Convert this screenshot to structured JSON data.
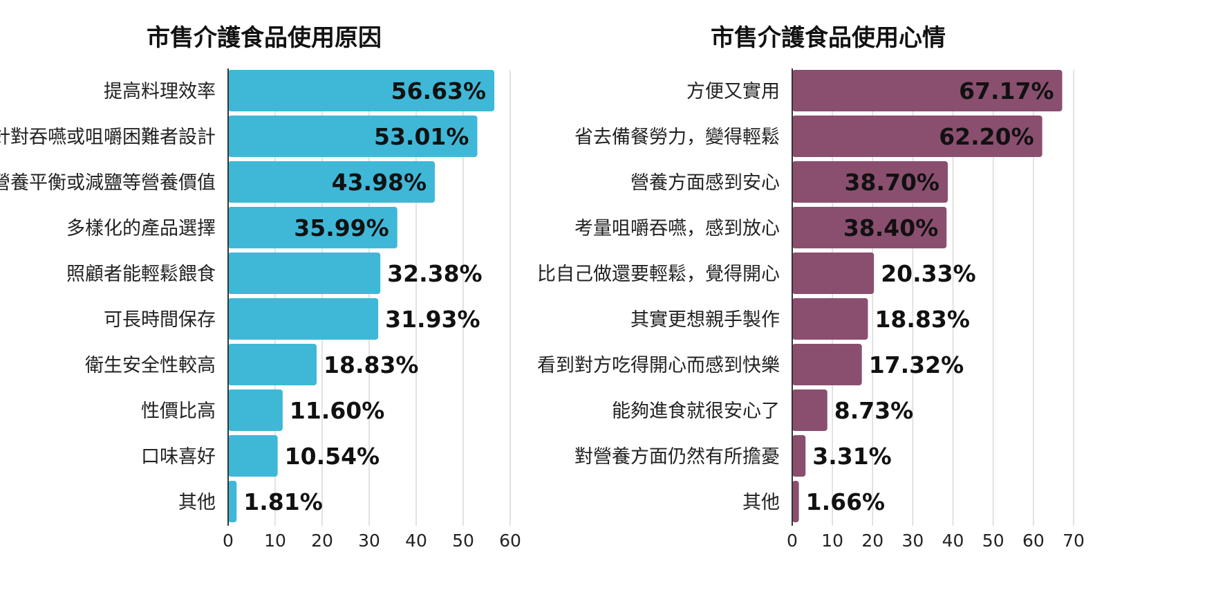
{
  "chart_data": [
    {
      "type": "bar",
      "title": "市售介護食品使用原因",
      "color": "#3fb8d8",
      "categories": [
        "提高料理效率",
        "針對吞嚥或咀嚼困難者設計",
        "營養平衡或減鹽等營養價值",
        "多樣化的產品選擇",
        "照顧者能輕鬆餵食",
        "可長時間保存",
        "衛生安全性較高",
        "性價比高",
        "口味喜好",
        "其他"
      ],
      "values": [
        56.63,
        53.01,
        43.98,
        35.99,
        32.38,
        31.93,
        18.83,
        11.6,
        10.54,
        1.81
      ],
      "value_labels": [
        "56.63%",
        "53.01%",
        "43.98%",
        "35.99%",
        "32.38%",
        "31.93%",
        "18.83%",
        "11.60%",
        "10.54%",
        "1.81%"
      ],
      "xlim": [
        0,
        60
      ],
      "ticks": [
        "0",
        "10",
        "20",
        "30",
        "40",
        "50",
        "60"
      ],
      "grid": true
    },
    {
      "type": "bar",
      "title": "市售介護食品使用心情",
      "color": "#8a4f6f",
      "categories": [
        "方便又實用",
        "省去備餐勞力，變得輕鬆",
        "營養方面感到安心",
        "考量咀嚼吞嚥，感到放心",
        "比自己做還要輕鬆，覺得開心",
        "其實更想親手製作",
        "看到對方吃得開心而感到快樂",
        "能夠進食就很安心了",
        "對營養方面仍然有所擔憂",
        "其他"
      ],
      "values": [
        67.17,
        62.2,
        38.7,
        38.4,
        20.33,
        18.83,
        17.32,
        8.73,
        3.31,
        1.66
      ],
      "value_labels": [
        "67.17%",
        "62.20%",
        "38.70%",
        "38.40%",
        "20.33%",
        "18.83%",
        "17.32%",
        "8.73%",
        "3.31%",
        "1.66%"
      ],
      "xlim": [
        0,
        70
      ],
      "ticks": [
        "0",
        "10",
        "20",
        "30",
        "40",
        "50",
        "60",
        "70"
      ],
      "grid": true
    }
  ]
}
